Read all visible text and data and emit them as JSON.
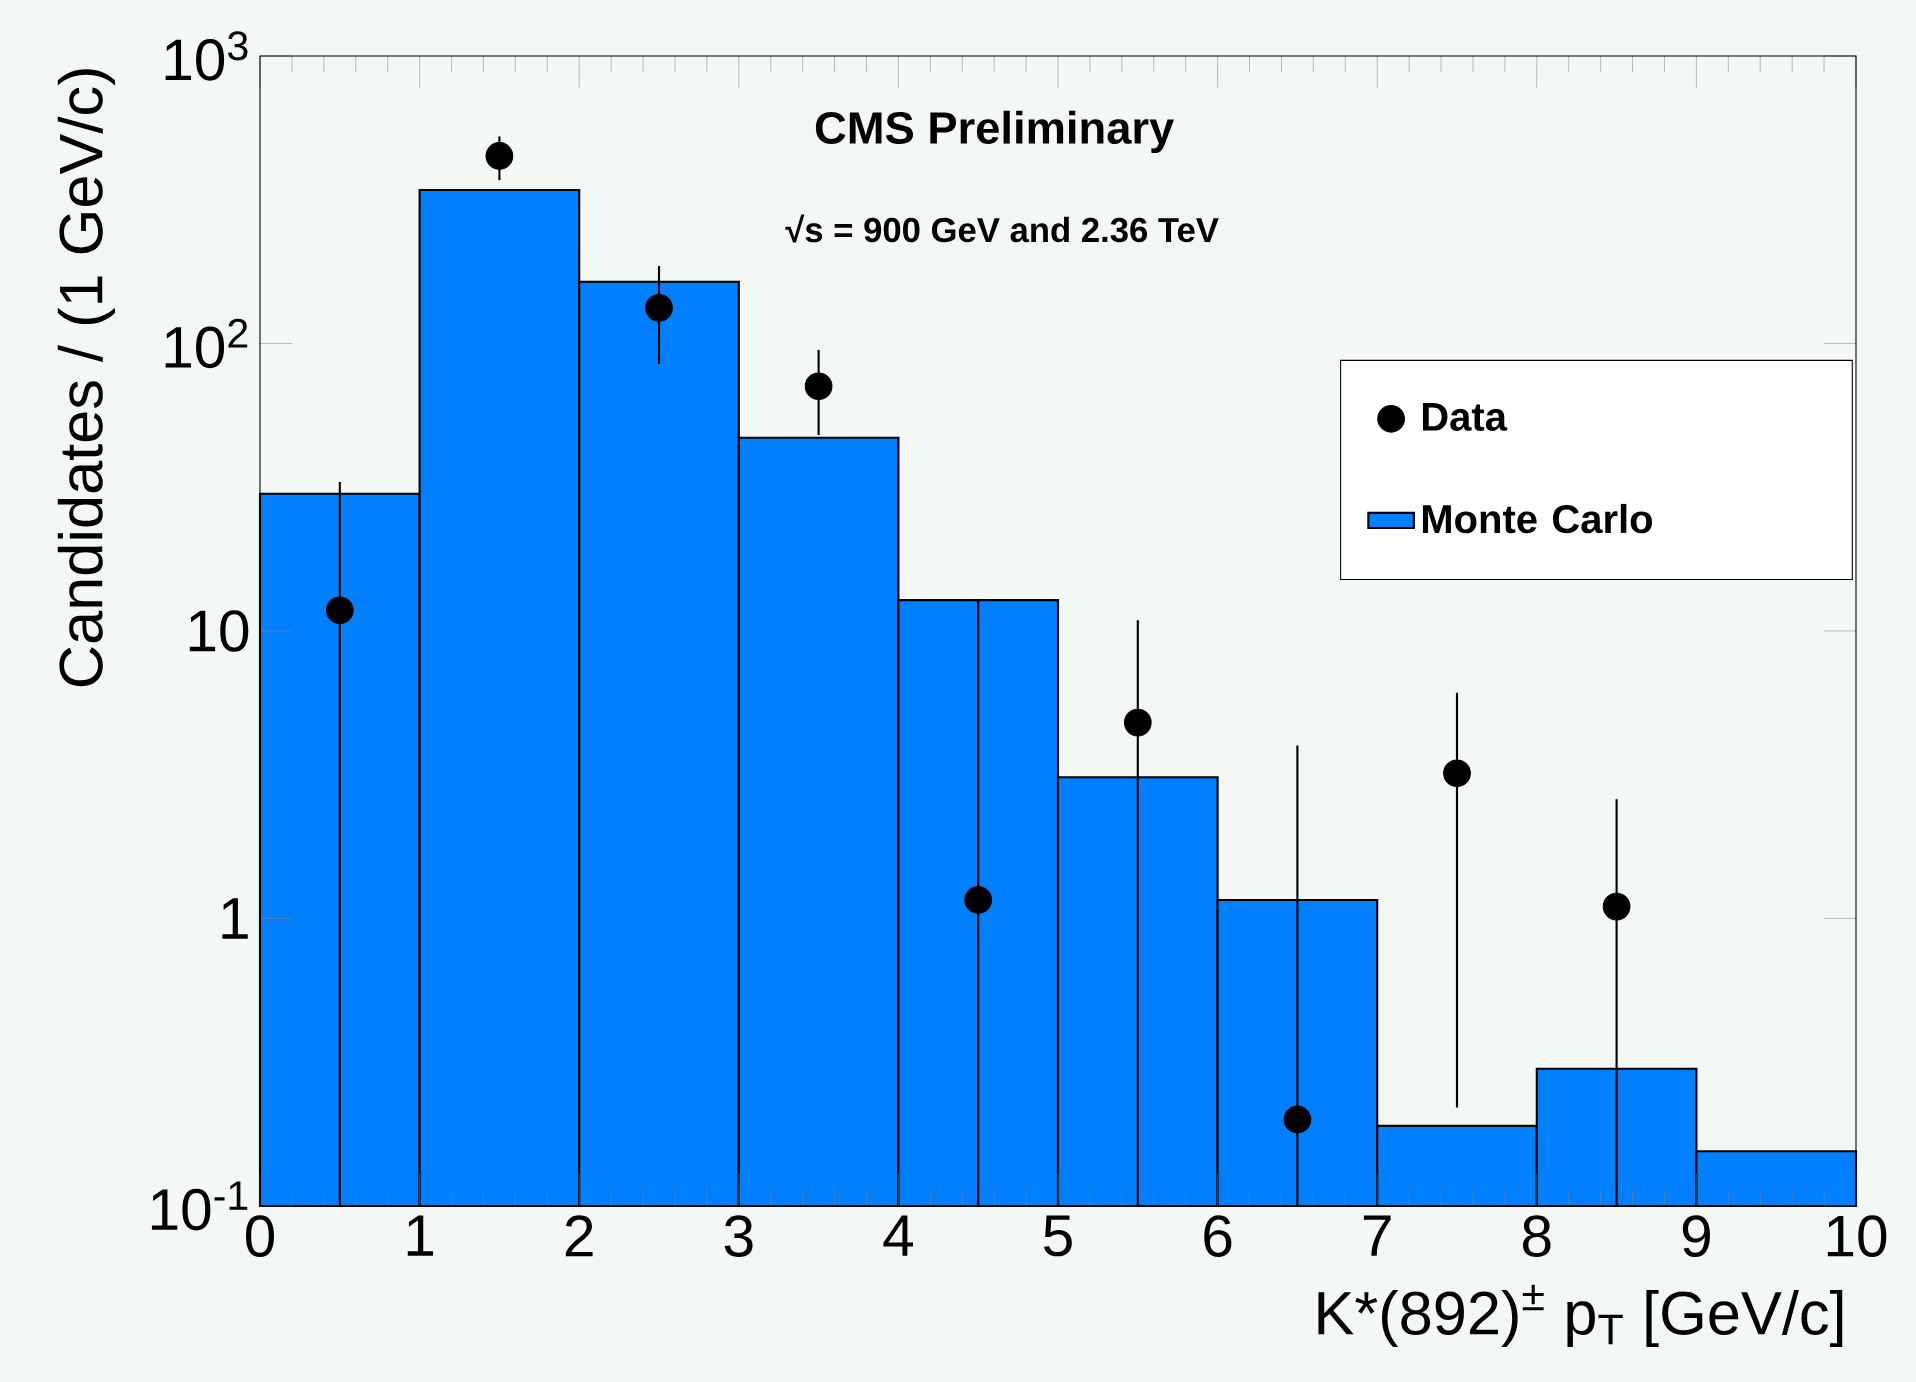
{
  "chart_data": {
    "type": "histogram",
    "title": "CMS Preliminary",
    "subtitle": "√s = 900 GeV and 2.36 TeV",
    "xlabel": "K*(892)$^{±}$ p$_{T}$ [GeV/c]",
    "ylabel": "Candidates / (1 GeV/c)",
    "bins": [
      0,
      1,
      2,
      3,
      4,
      5,
      6,
      7,
      8,
      9,
      10
    ],
    "series": [
      {
        "name": "Monte Carlo",
        "color": "#0080ff",
        "values": [
          30,
          342,
          164,
          47,
          12.8,
          3.1,
          1.16,
          0.19,
          0.3,
          0.155
        ]
      },
      {
        "name": "Data",
        "type": "scatter",
        "color": "#000000",
        "x": [
          0.5,
          1.5,
          2.5,
          3.5,
          4.5,
          5.5,
          6.5,
          7.5,
          8.5
        ],
        "values": [
          11.8,
          449,
          133,
          71,
          1.16,
          4.8,
          0.2,
          3.2,
          1.1
        ],
        "errors": [
          [
            0.1,
            33
          ],
          [
            370,
            525
          ],
          [
            85,
            186
          ],
          [
            48,
            95
          ],
          [
            0.1,
            12.8
          ],
          [
            0.1,
            10.9
          ],
          [
            0.1,
            4.0
          ],
          [
            0.22,
            6.1
          ],
          [
            0.1,
            2.6
          ]
        ]
      }
    ],
    "xlim": [
      0,
      10
    ],
    "ylim": [
      0.1,
      1000
    ],
    "xticks": [
      0,
      1,
      2,
      3,
      4,
      5,
      6,
      7,
      8,
      9,
      10
    ],
    "yticks": [
      {
        "value": 0.1,
        "label": "10$^{-1}$"
      },
      1,
      10,
      {
        "value": 100,
        "label": "10$^{2}$"
      },
      {
        "value": 1000,
        "label": "10$^{3}$"
      }
    ],
    "log": "y",
    "legend": "right",
    "marker": "circle"
  }
}
